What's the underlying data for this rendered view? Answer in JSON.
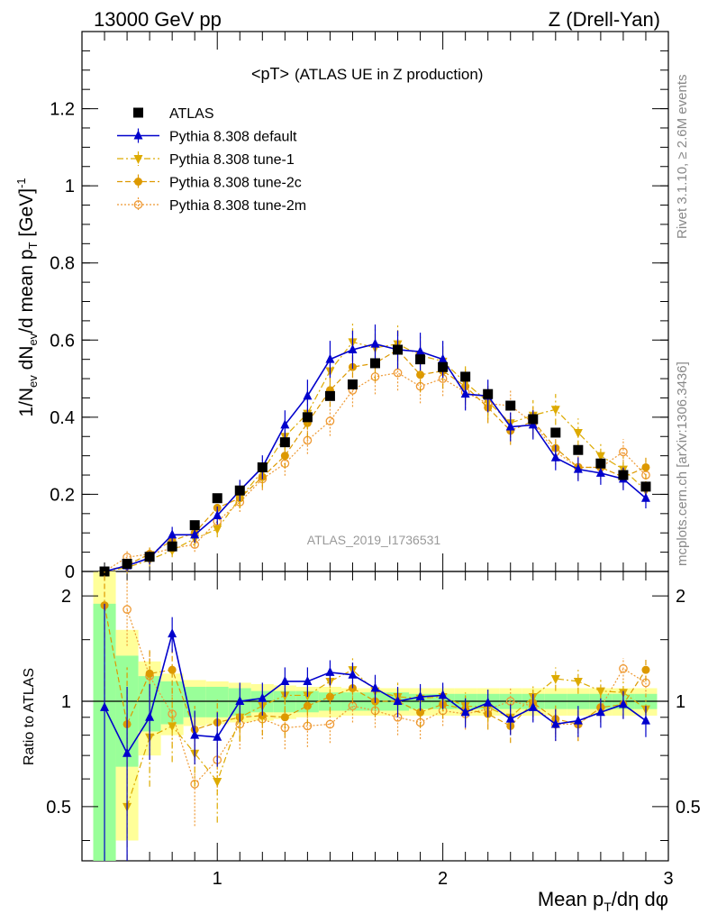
{
  "header": {
    "left": "13000 GeV pp",
    "right": "Z (Drell-Yan)"
  },
  "chart_data": {
    "type": "scatter",
    "title": "<pT>",
    "subtitle": "(ATLAS UE in Z production)",
    "watermark": "ATLAS_2019_I1736531",
    "side_text_top": "Rivet 3.1.10, ≥ 2.6M events",
    "side_text_bottom": "mcplots.cern.ch [arXiv:1306.3436]",
    "xlabel": "Mean p_T/dη dφ",
    "ylabel": "1/N_ev dN_ev/d mean p_T [GeV]^-1",
    "ratio_ylabel": "Ratio to ATLAS",
    "xlim": [
      0.4,
      3.0
    ],
    "ylim": [
      0,
      1.4
    ],
    "ratio_ylim": [
      0.35,
      2.35
    ],
    "ratio_log": true,
    "x_ticks": [
      "1",
      "2",
      "3"
    ],
    "y_ticks": [
      "0",
      "0.2",
      "0.4",
      "0.6",
      "0.8",
      "1",
      "1.2"
    ],
    "ratio_ticks": [
      "0.5",
      "1",
      "2"
    ],
    "legend_position": "top-left",
    "x": [
      0.5,
      0.6,
      0.7,
      0.8,
      0.9,
      1.0,
      1.1,
      1.2,
      1.3,
      1.4,
      1.5,
      1.6,
      1.7,
      1.8,
      1.9,
      2.0,
      2.1,
      2.2,
      2.3,
      2.4,
      2.5,
      2.6,
      2.7,
      2.8,
      2.9
    ],
    "series": [
      {
        "name": "ATLAS",
        "color": "#000000",
        "marker": "square",
        "line": "none",
        "values": [
          0.0,
          0.02,
          0.038,
          0.065,
          0.12,
          0.19,
          0.21,
          0.27,
          0.335,
          0.4,
          0.455,
          0.485,
          0.54,
          0.575,
          0.55,
          0.53,
          0.505,
          0.46,
          0.43,
          0.395,
          0.36,
          0.315,
          0.28,
          0.25,
          0.22
        ]
      },
      {
        "name": "Pythia 8.308 default",
        "color": "#0000cc",
        "marker": "triangle-up",
        "line": "solid",
        "values": [
          0.0,
          0.015,
          0.035,
          0.095,
          0.095,
          0.145,
          0.21,
          0.27,
          0.38,
          0.455,
          0.55,
          0.575,
          0.59,
          0.575,
          0.57,
          0.55,
          0.46,
          0.455,
          0.375,
          0.38,
          0.295,
          0.265,
          0.255,
          0.24,
          0.19
        ]
      },
      {
        "name": "Pythia 8.308 tune-1",
        "color": "#ddaa00",
        "marker": "triangle-down",
        "line": "dashdot",
        "values": [
          0.0,
          0.01,
          0.03,
          0.055,
          0.085,
          0.11,
          0.19,
          0.26,
          0.35,
          0.41,
          0.52,
          0.595,
          0.58,
          0.59,
          0.56,
          0.545,
          0.49,
          0.44,
          0.385,
          0.405,
          0.42,
          0.36,
          0.3,
          0.265,
          0.21
        ]
      },
      {
        "name": "Pythia 8.308 tune-2c",
        "color": "#dd9900",
        "marker": "circle",
        "line": "dashed",
        "values": [
          0.0,
          0.017,
          0.045,
          0.08,
          0.1,
          0.165,
          0.19,
          0.245,
          0.3,
          0.385,
          0.47,
          0.53,
          0.54,
          0.575,
          0.51,
          0.52,
          0.48,
          0.425,
          0.365,
          0.39,
          0.32,
          0.27,
          0.27,
          0.245,
          0.27
        ]
      },
      {
        "name": "Pythia 8.308 tune-2m",
        "color": "#ee9933",
        "marker": "circle-open",
        "line": "dotted",
        "values": [
          0.0,
          0.037,
          0.045,
          0.06,
          0.07,
          0.13,
          0.18,
          0.24,
          0.28,
          0.34,
          0.39,
          0.47,
          0.505,
          0.515,
          0.48,
          0.5,
          0.465,
          0.435,
          0.43,
          0.385,
          0.31,
          0.27,
          0.27,
          0.31,
          0.25
        ]
      }
    ],
    "ratios": [
      {
        "name": "Pythia 8.308 default",
        "values": [
          0.96,
          0.71,
          0.9,
          1.56,
          0.8,
          0.79,
          1.0,
          1.02,
          1.14,
          1.14,
          1.21,
          1.19,
          1.09,
          1.0,
          1.03,
          1.04,
          0.93,
          0.99,
          0.89,
          0.96,
          0.86,
          0.88,
          0.93,
          0.98,
          0.88
        ]
      },
      {
        "name": "Pythia 8.308 tune-1",
        "values": [
          null,
          0.5,
          0.79,
          0.85,
          0.71,
          0.59,
          0.9,
          0.97,
          1.04,
          1.04,
          1.14,
          1.23,
          1.07,
          1.03,
          1.02,
          1.03,
          0.97,
          0.96,
          0.9,
          1.03,
          1.16,
          1.14,
          1.07,
          1.06,
          0.95
        ]
      },
      {
        "name": "Pythia 8.308 tune-2c",
        "values": [
          1.88,
          0.86,
          1.2,
          1.23,
          0.83,
          0.87,
          0.9,
          0.91,
          0.9,
          0.97,
          1.03,
          1.09,
          1.0,
          1.0,
          0.93,
          0.98,
          0.95,
          0.92,
          0.85,
          0.99,
          0.89,
          0.86,
          0.96,
          0.98,
          1.23
        ]
      },
      {
        "name": "Pythia 8.308 tune-2m",
        "values": [
          null,
          1.83,
          1.18,
          0.92,
          0.58,
          0.68,
          0.86,
          0.89,
          0.84,
          0.85,
          0.86,
          0.97,
          0.94,
          0.9,
          0.87,
          0.94,
          0.92,
          0.95,
          1.0,
          0.97,
          0.86,
          0.86,
          0.96,
          1.24,
          1.13
        ]
      }
    ],
    "bands": {
      "green_half_width": [
        0.9,
        0.35,
        0.18,
        0.14,
        0.1,
        0.1,
        0.09,
        0.07,
        0.07,
        0.07,
        0.06,
        0.06,
        0.06,
        0.06,
        0.05,
        0.05,
        0.05,
        0.05,
        0.05,
        0.05,
        0.05,
        0.05,
        0.05,
        0.05,
        0.05
      ],
      "yellow_half_width": [
        1.4,
        0.6,
        0.3,
        0.2,
        0.15,
        0.14,
        0.13,
        0.12,
        0.11,
        0.1,
        0.1,
        0.09,
        0.09,
        0.09,
        0.09,
        0.09,
        0.09,
        0.09,
        0.09,
        0.09,
        0.09,
        0.09,
        0.09,
        0.09,
        0.09
      ]
    }
  }
}
